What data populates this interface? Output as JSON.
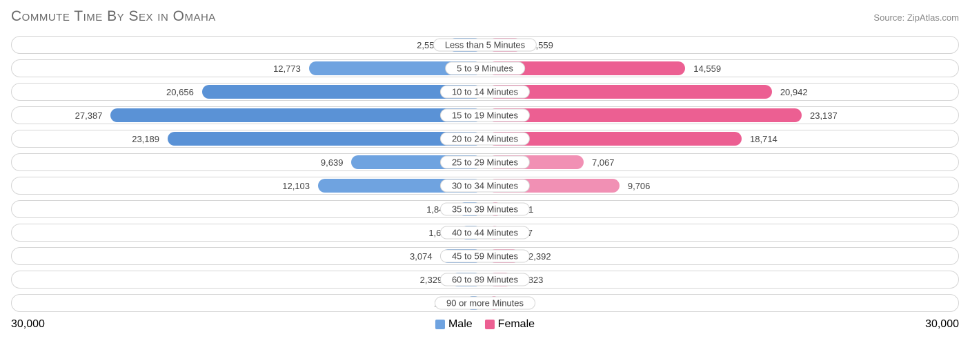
{
  "title": "Commute Time By Sex in Omaha",
  "source_label": "Source:",
  "source_name": "ZipAtlas.com",
  "chart": {
    "type": "diverging-bar",
    "max": 30000,
    "axis_left_label": "30,000",
    "axis_right_label": "30,000",
    "male_color": "#6fa3e0",
    "male_color_strong": "#5a92d6",
    "female_color": "#f190b4",
    "female_color_strong": "#ec5f92",
    "row_border_color": "#d5d5d5",
    "background_color": "#ffffff",
    "text_color": "#444444",
    "legend": [
      {
        "label": "Male",
        "color": "#6fa3e0"
      },
      {
        "label": "Female",
        "color": "#ec5f92"
      }
    ],
    "rows": [
      {
        "category": "Less than 5 Minutes",
        "male": 2559,
        "male_label": "2,559",
        "female": 2559,
        "female_label": "2,559",
        "male_strong": false,
        "female_strong": false
      },
      {
        "category": "5 to 9 Minutes",
        "male": 12773,
        "male_label": "12,773",
        "female": 14559,
        "female_label": "14,559",
        "male_strong": false,
        "female_strong": true
      },
      {
        "category": "10 to 14 Minutes",
        "male": 20656,
        "male_label": "20,656",
        "female": 20942,
        "female_label": "20,942",
        "male_strong": true,
        "female_strong": true
      },
      {
        "category": "15 to 19 Minutes",
        "male": 27387,
        "male_label": "27,387",
        "female": 23137,
        "female_label": "23,137",
        "male_strong": true,
        "female_strong": true
      },
      {
        "category": "20 to 24 Minutes",
        "male": 23189,
        "male_label": "23,189",
        "female": 18714,
        "female_label": "18,714",
        "male_strong": true,
        "female_strong": true
      },
      {
        "category": "25 to 29 Minutes",
        "male": 9639,
        "male_label": "9,639",
        "female": 7067,
        "female_label": "7,067",
        "male_strong": false,
        "female_strong": false
      },
      {
        "category": "30 to 34 Minutes",
        "male": 12103,
        "male_label": "12,103",
        "female": 9706,
        "female_label": "9,706",
        "male_strong": false,
        "female_strong": false
      },
      {
        "category": "35 to 39 Minutes",
        "male": 1844,
        "male_label": "1,844",
        "female": 1101,
        "female_label": "1,101",
        "male_strong": false,
        "female_strong": false
      },
      {
        "category": "40 to 44 Minutes",
        "male": 1685,
        "male_label": "1,685",
        "female": 1037,
        "female_label": "1,037",
        "male_strong": false,
        "female_strong": false
      },
      {
        "category": "45 to 59 Minutes",
        "male": 3074,
        "male_label": "3,074",
        "female": 2392,
        "female_label": "2,392",
        "male_strong": false,
        "female_strong": false
      },
      {
        "category": "60 to 89 Minutes",
        "male": 2329,
        "male_label": "2,329",
        "female": 1823,
        "female_label": "1,823",
        "male_strong": false,
        "female_strong": false
      },
      {
        "category": "90 or more Minutes",
        "male": 1294,
        "male_label": "1,294",
        "female": 905,
        "female_label": "905",
        "male_strong": false,
        "female_strong": false
      }
    ]
  }
}
